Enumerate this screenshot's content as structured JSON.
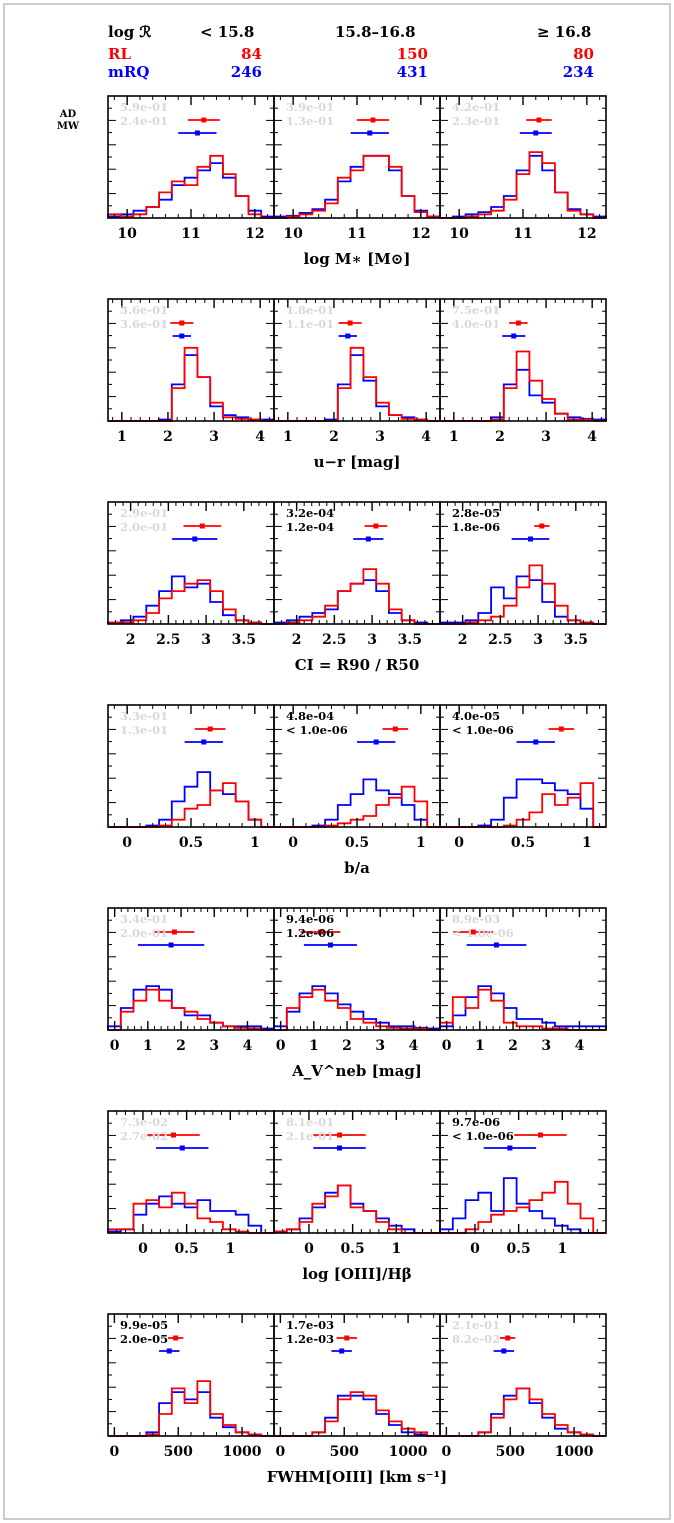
{
  "header": {
    "title": "log ℛ",
    "bins": [
      "< 15.8",
      "15.8–16.8",
      "≥ 16.8"
    ],
    "rl_label": "RL",
    "mrq_label": "mRQ",
    "rl_counts": [
      "84",
      "150",
      "80"
    ],
    "mrq_counts": [
      "246",
      "431",
      "234"
    ],
    "stat_labels": [
      "AD",
      "MW"
    ]
  },
  "colors": {
    "rl": "#ff0000",
    "mrq": "#0000ff",
    "faint": "#d8d8d8",
    "ink": "#000000"
  },
  "chart_data": [
    {
      "type": "histogram",
      "xlabel": "log M∗ [M⊙]",
      "xlim": [
        9.7,
        12.3
      ],
      "ticks": [
        10,
        11,
        12
      ],
      "tick_labels": [
        "10",
        "11",
        "12"
      ],
      "panels": [
        {
          "stats": [
            "5.9e-01",
            "2.4e-01"
          ],
          "significant": false,
          "rl": [
            0.05,
            0.02,
            0.05,
            0.15,
            0.35,
            0.5,
            0.45,
            0.7,
            0.85,
            0.6,
            0.3,
            0.05,
            0.0
          ],
          "mrq": [
            0.02,
            0.05,
            0.1,
            0.15,
            0.25,
            0.45,
            0.55,
            0.65,
            0.75,
            0.55,
            0.3,
            0.1,
            0.02
          ],
          "rl_marker": {
            "x": 11.2,
            "err": 0.25
          },
          "mrq_marker": {
            "x": 11.1,
            "err": 0.3
          }
        },
        {
          "stats": [
            "3.9e-01",
            "1.3e-01"
          ],
          "significant": false,
          "rl": [
            0.0,
            0.02,
            0.05,
            0.1,
            0.2,
            0.55,
            0.65,
            0.85,
            0.85,
            0.7,
            0.3,
            0.08,
            0.02
          ],
          "mrq": [
            0.02,
            0.03,
            0.07,
            0.12,
            0.25,
            0.5,
            0.7,
            0.85,
            0.85,
            0.65,
            0.3,
            0.1,
            0.02
          ],
          "rl_marker": {
            "x": 11.25,
            "err": 0.25
          },
          "mrq_marker": {
            "x": 11.2,
            "err": 0.3
          }
        },
        {
          "stats": [
            "4.2e-01",
            "2.3e-01"
          ],
          "significant": false,
          "rl": [
            0.0,
            0.0,
            0.02,
            0.05,
            0.1,
            0.25,
            0.6,
            0.9,
            0.75,
            0.35,
            0.1,
            0.05,
            0.0
          ],
          "mrq": [
            0.0,
            0.02,
            0.05,
            0.08,
            0.15,
            0.3,
            0.65,
            0.85,
            0.65,
            0.35,
            0.12,
            0.05,
            0.02
          ],
          "rl_marker": {
            "x": 11.25,
            "err": 0.2
          },
          "mrq_marker": {
            "x": 11.2,
            "err": 0.25
          }
        }
      ]
    },
    {
      "type": "histogram",
      "xlabel": "u−r [mag]",
      "xlim": [
        0.7,
        4.3
      ],
      "ticks": [
        1,
        2,
        3,
        4
      ],
      "tick_labels": [
        "1",
        "2",
        "3",
        "4"
      ],
      "panels": [
        {
          "stats": [
            "3.6e-01",
            "3.6e-01"
          ],
          "significant": false,
          "rl": [
            0.0,
            0.0,
            0.0,
            0.0,
            0.0,
            0.45,
            1.0,
            0.6,
            0.25,
            0.05,
            0.03,
            0.02,
            0.0
          ],
          "mrq": [
            0.0,
            0.0,
            0.0,
            0.0,
            0.02,
            0.5,
            0.9,
            0.6,
            0.2,
            0.08,
            0.05,
            0.02,
            0.02
          ],
          "rl_marker": {
            "x": 2.3,
            "err": 0.25
          },
          "mrq_marker": {
            "x": 2.3,
            "err": 0.2
          }
        },
        {
          "stats": [
            "1.8e-01",
            "1.1e-01"
          ],
          "significant": false,
          "rl": [
            0.0,
            0.0,
            0.0,
            0.0,
            0.0,
            0.45,
            1.0,
            0.6,
            0.25,
            0.08,
            0.03,
            0.02,
            0.0
          ],
          "mrq": [
            0.0,
            0.0,
            0.0,
            0.0,
            0.02,
            0.5,
            0.9,
            0.55,
            0.2,
            0.08,
            0.05,
            0.02,
            0.0
          ],
          "rl_marker": {
            "x": 2.35,
            "err": 0.25
          },
          "mrq_marker": {
            "x": 2.3,
            "err": 0.2
          }
        },
        {
          "stats": [
            "7.5e-01",
            "4.0e-01"
          ],
          "significant": false,
          "rl": [
            0.0,
            0.0,
            0.0,
            0.0,
            0.02,
            0.45,
            0.95,
            0.55,
            0.3,
            0.1,
            0.02,
            0.02,
            0.0
          ],
          "mrq": [
            0.0,
            0.0,
            0.0,
            0.0,
            0.05,
            0.5,
            0.7,
            0.35,
            0.25,
            0.1,
            0.05,
            0.03,
            0.02
          ],
          "rl_marker": {
            "x": 2.4,
            "err": 0.2
          },
          "mrq_marker": {
            "x": 2.3,
            "err": 0.25
          }
        }
      ]
    },
    {
      "type": "histogram",
      "xlabel": "CI = R90 / R50",
      "xlim": [
        1.7,
        3.9
      ],
      "ticks": [
        2,
        2.5,
        3,
        3.5
      ],
      "tick_labels": [
        "2",
        "2.5",
        "3",
        "3.5"
      ],
      "panels": [
        {
          "stats": [
            "2.9e-01",
            "2.0e-01"
          ],
          "significant": false,
          "rl": [
            0.02,
            0.02,
            0.05,
            0.15,
            0.35,
            0.45,
            0.55,
            0.6,
            0.45,
            0.2,
            0.05,
            0.02,
            0.0
          ],
          "mrq": [
            0.02,
            0.05,
            0.1,
            0.25,
            0.45,
            0.65,
            0.5,
            0.55,
            0.3,
            0.12,
            0.05,
            0.02,
            0.0
          ],
          "rl_marker": {
            "x": 2.95,
            "err": 0.25
          },
          "mrq_marker": {
            "x": 2.85,
            "err": 0.3
          }
        },
        {
          "stats": [
            "3.2e-04",
            "1.2e-04"
          ],
          "significant": true,
          "rl": [
            0.0,
            0.02,
            0.05,
            0.1,
            0.25,
            0.45,
            0.55,
            0.75,
            0.55,
            0.2,
            0.05,
            0.0,
            0.0
          ],
          "mrq": [
            0.02,
            0.05,
            0.1,
            0.15,
            0.2,
            0.45,
            0.55,
            0.6,
            0.45,
            0.15,
            0.05,
            0.02,
            0.0
          ],
          "rl_marker": {
            "x": 3.05,
            "err": 0.15
          },
          "mrq_marker": {
            "x": 2.95,
            "err": 0.2
          }
        },
        {
          "stats": [
            "2.8e-05",
            "1.8e-06"
          ],
          "significant": true,
          "rl": [
            0.0,
            0.0,
            0.02,
            0.05,
            0.1,
            0.25,
            0.5,
            0.8,
            0.55,
            0.25,
            0.05,
            0.02,
            0.0
          ],
          "mrq": [
            0.02,
            0.02,
            0.05,
            0.15,
            0.5,
            0.35,
            0.65,
            0.6,
            0.3,
            0.1,
            0.05,
            0.02,
            0.0
          ],
          "rl_marker": {
            "x": 3.05,
            "err": 0.1
          },
          "mrq_marker": {
            "x": 2.9,
            "err": 0.25
          }
        }
      ]
    },
    {
      "type": "histogram",
      "xlabel": "b/a",
      "xlim": [
        -0.15,
        1.15
      ],
      "ticks": [
        0,
        0.5,
        1
      ],
      "tick_labels": [
        "0",
        "0.5",
        "1"
      ],
      "panels": [
        {
          "stats": [
            "3.3e-01",
            "1.3e-01"
          ],
          "significant": false,
          "rl": [
            0.0,
            0.0,
            0.0,
            0.0,
            0.02,
            0.1,
            0.25,
            0.3,
            0.5,
            0.6,
            0.35,
            0.1,
            0.0
          ],
          "mrq": [
            0.0,
            0.0,
            0.0,
            0.02,
            0.1,
            0.35,
            0.55,
            0.75,
            0.5,
            0.45,
            0.35,
            0.1,
            0.0
          ],
          "rl_marker": {
            "x": 0.65,
            "err": 0.12
          },
          "mrq_marker": {
            "x": 0.6,
            "err": 0.15
          }
        },
        {
          "stats": [
            "4.8e-04",
            "< 1.0e-06"
          ],
          "significant": true,
          "rl": [
            0.0,
            0.0,
            0.0,
            0.0,
            0.02,
            0.05,
            0.1,
            0.15,
            0.3,
            0.4,
            0.55,
            0.35,
            0.0
          ],
          "mrq": [
            0.0,
            0.0,
            0.0,
            0.02,
            0.1,
            0.3,
            0.45,
            0.65,
            0.5,
            0.45,
            0.3,
            0.1,
            0.0
          ],
          "rl_marker": {
            "x": 0.8,
            "err": 0.1
          },
          "mrq_marker": {
            "x": 0.65,
            "err": 0.15
          }
        },
        {
          "stats": [
            "4.0e-05",
            "< 1.0e-06"
          ],
          "significant": true,
          "rl": [
            0.0,
            0.0,
            0.0,
            0.0,
            0.0,
            0.02,
            0.1,
            0.2,
            0.45,
            0.3,
            0.4,
            0.6,
            0.0
          ],
          "mrq": [
            0.0,
            0.0,
            0.0,
            0.02,
            0.1,
            0.4,
            0.65,
            0.65,
            0.6,
            0.5,
            0.45,
            0.25,
            0.0
          ],
          "rl_marker": {
            "x": 0.8,
            "err": 0.1
          },
          "mrq_marker": {
            "x": 0.6,
            "err": 0.15
          }
        }
      ]
    },
    {
      "type": "histogram",
      "xlabel": "A_V^neb [mag]",
      "xlim": [
        -0.2,
        4.8
      ],
      "ticks": [
        0,
        1,
        2,
        3,
        4
      ],
      "tick_labels": [
        "0",
        "1",
        "2",
        "3",
        "4"
      ],
      "panels": [
        {
          "stats": [
            "3.4e-01",
            "2.0e-01"
          ],
          "significant": false,
          "rl": [
            0.0,
            0.25,
            0.4,
            0.55,
            0.4,
            0.3,
            0.25,
            0.15,
            0.1,
            0.05,
            0.03,
            0.02,
            0.0
          ],
          "mrq": [
            0.05,
            0.3,
            0.55,
            0.6,
            0.55,
            0.3,
            0.2,
            0.2,
            0.1,
            0.05,
            0.05,
            0.05,
            0.02
          ],
          "rl_marker": {
            "x": 1.8,
            "err": 0.6
          },
          "mrq_marker": {
            "x": 1.7,
            "err": 1.0
          }
        },
        {
          "stats": [
            "9.4e-06",
            "1.2e-06"
          ],
          "significant": true,
          "rl": [
            0.0,
            0.3,
            0.45,
            0.55,
            0.4,
            0.3,
            0.15,
            0.1,
            0.05,
            0.03,
            0.02,
            0.02,
            0.0
          ],
          "mrq": [
            0.05,
            0.25,
            0.5,
            0.6,
            0.5,
            0.35,
            0.25,
            0.15,
            0.1,
            0.05,
            0.05,
            0.03,
            0.02
          ],
          "rl_marker": {
            "x": 1.2,
            "err": 0.6
          },
          "mrq_marker": {
            "x": 1.5,
            "err": 0.8
          }
        },
        {
          "stats": [
            "8.9e-03",
            "< 1.0e-06"
          ],
          "significant": false,
          "rl": [
            0.1,
            0.45,
            0.3,
            0.55,
            0.4,
            0.1,
            0.05,
            0.05,
            0.02,
            0.02,
            0.0,
            0.0,
            0.0
          ],
          "mrq": [
            0.05,
            0.2,
            0.45,
            0.6,
            0.5,
            0.3,
            0.15,
            0.15,
            0.1,
            0.05,
            0.05,
            0.05,
            0.05
          ],
          "rl_marker": {
            "x": 0.8,
            "err": 0.6
          },
          "mrq_marker": {
            "x": 1.5,
            "err": 0.9
          }
        }
      ]
    },
    {
      "type": "histogram",
      "xlabel": "log [OIII]/Hβ",
      "xlim": [
        -0.4,
        1.5
      ],
      "ticks": [
        0,
        0.5,
        1
      ],
      "tick_labels": [
        "0",
        "0.5",
        "1"
      ],
      "panels": [
        {
          "stats": [
            "7.3e-02",
            "2.7e-02"
          ],
          "significant": false,
          "rl": [
            0.05,
            0.05,
            0.4,
            0.45,
            0.35,
            0.55,
            0.4,
            0.2,
            0.15,
            0.05,
            0.02,
            0.0,
            0.0
          ],
          "mrq": [
            0.02,
            0.05,
            0.25,
            0.4,
            0.5,
            0.4,
            0.35,
            0.45,
            0.3,
            0.3,
            0.25,
            0.1,
            0.0
          ],
          "rl_marker": {
            "x": 0.35,
            "err": 0.3
          },
          "mrq_marker": {
            "x": 0.45,
            "err": 0.3
          }
        },
        {
          "stats": [
            "8.1e-01",
            "2.1e-01"
          ],
          "significant": false,
          "rl": [
            0.02,
            0.05,
            0.15,
            0.4,
            0.5,
            0.65,
            0.35,
            0.3,
            0.15,
            0.05,
            0.0,
            0.0,
            0.0
          ],
          "mrq": [
            0.02,
            0.05,
            0.2,
            0.35,
            0.55,
            0.65,
            0.4,
            0.3,
            0.2,
            0.1,
            0.05,
            0.0,
            0.0
          ],
          "rl_marker": {
            "x": 0.35,
            "err": 0.3
          },
          "mrq_marker": {
            "x": 0.35,
            "err": 0.3
          }
        },
        {
          "stats": [
            "9.7e-06",
            "< 1.0e-06"
          ],
          "significant": true,
          "rl": [
            0.0,
            0.0,
            0.05,
            0.15,
            0.25,
            0.3,
            0.35,
            0.45,
            0.55,
            0.7,
            0.4,
            0.2,
            0.0
          ],
          "mrq": [
            0.05,
            0.2,
            0.45,
            0.55,
            0.3,
            0.75,
            0.4,
            0.3,
            0.2,
            0.1,
            0.05,
            0.0,
            0.0
          ],
          "rl_marker": {
            "x": 0.75,
            "err": 0.3
          },
          "mrq_marker": {
            "x": 0.4,
            "err": 0.3
          }
        }
      ]
    },
    {
      "type": "histogram",
      "xlabel": "FWHM[OIII] [km s⁻¹]",
      "xlim": [
        -50,
        1250
      ],
      "ticks": [
        0,
        500,
        1000
      ],
      "tick_labels": [
        "0",
        "500",
        "1000"
      ],
      "panels": [
        {
          "stats": [
            "9.9e-05",
            "2.0e-05"
          ],
          "significant": true,
          "rl": [
            0.0,
            0.0,
            0.0,
            0.02,
            0.3,
            0.65,
            0.45,
            0.75,
            0.3,
            0.15,
            0.05,
            0.02,
            0.0
          ],
          "mrq": [
            0.0,
            0.0,
            0.0,
            0.05,
            0.45,
            0.6,
            0.5,
            0.6,
            0.25,
            0.12,
            0.05,
            0.02,
            0.0
          ],
          "rl_marker": {
            "x": 480,
            "err": 60
          },
          "mrq_marker": {
            "x": 430,
            "err": 80
          }
        },
        {
          "stats": [
            "1.7e-03",
            "1.2e-03"
          ],
          "significant": true,
          "rl": [
            0.0,
            0.0,
            0.0,
            0.05,
            0.2,
            0.5,
            0.6,
            0.55,
            0.35,
            0.2,
            0.1,
            0.05,
            0.0
          ],
          "mrq": [
            0.0,
            0.0,
            0.0,
            0.05,
            0.25,
            0.55,
            0.55,
            0.5,
            0.3,
            0.15,
            0.05,
            0.02,
            0.0
          ],
          "rl_marker": {
            "x": 520,
            "err": 80
          },
          "mrq_marker": {
            "x": 480,
            "err": 80
          }
        },
        {
          "stats": [
            "2.1e-01",
            "8.2e-02"
          ],
          "significant": false,
          "rl": [
            0.0,
            0.0,
            0.0,
            0.05,
            0.25,
            0.5,
            0.65,
            0.5,
            0.3,
            0.15,
            0.05,
            0.02,
            0.0
          ],
          "mrq": [
            0.0,
            0.0,
            0.0,
            0.05,
            0.3,
            0.55,
            0.65,
            0.45,
            0.25,
            0.1,
            0.05,
            0.02,
            0.0
          ],
          "rl_marker": {
            "x": 480,
            "err": 60
          },
          "mrq_marker": {
            "x": 450,
            "err": 80
          }
        }
      ]
    }
  ]
}
